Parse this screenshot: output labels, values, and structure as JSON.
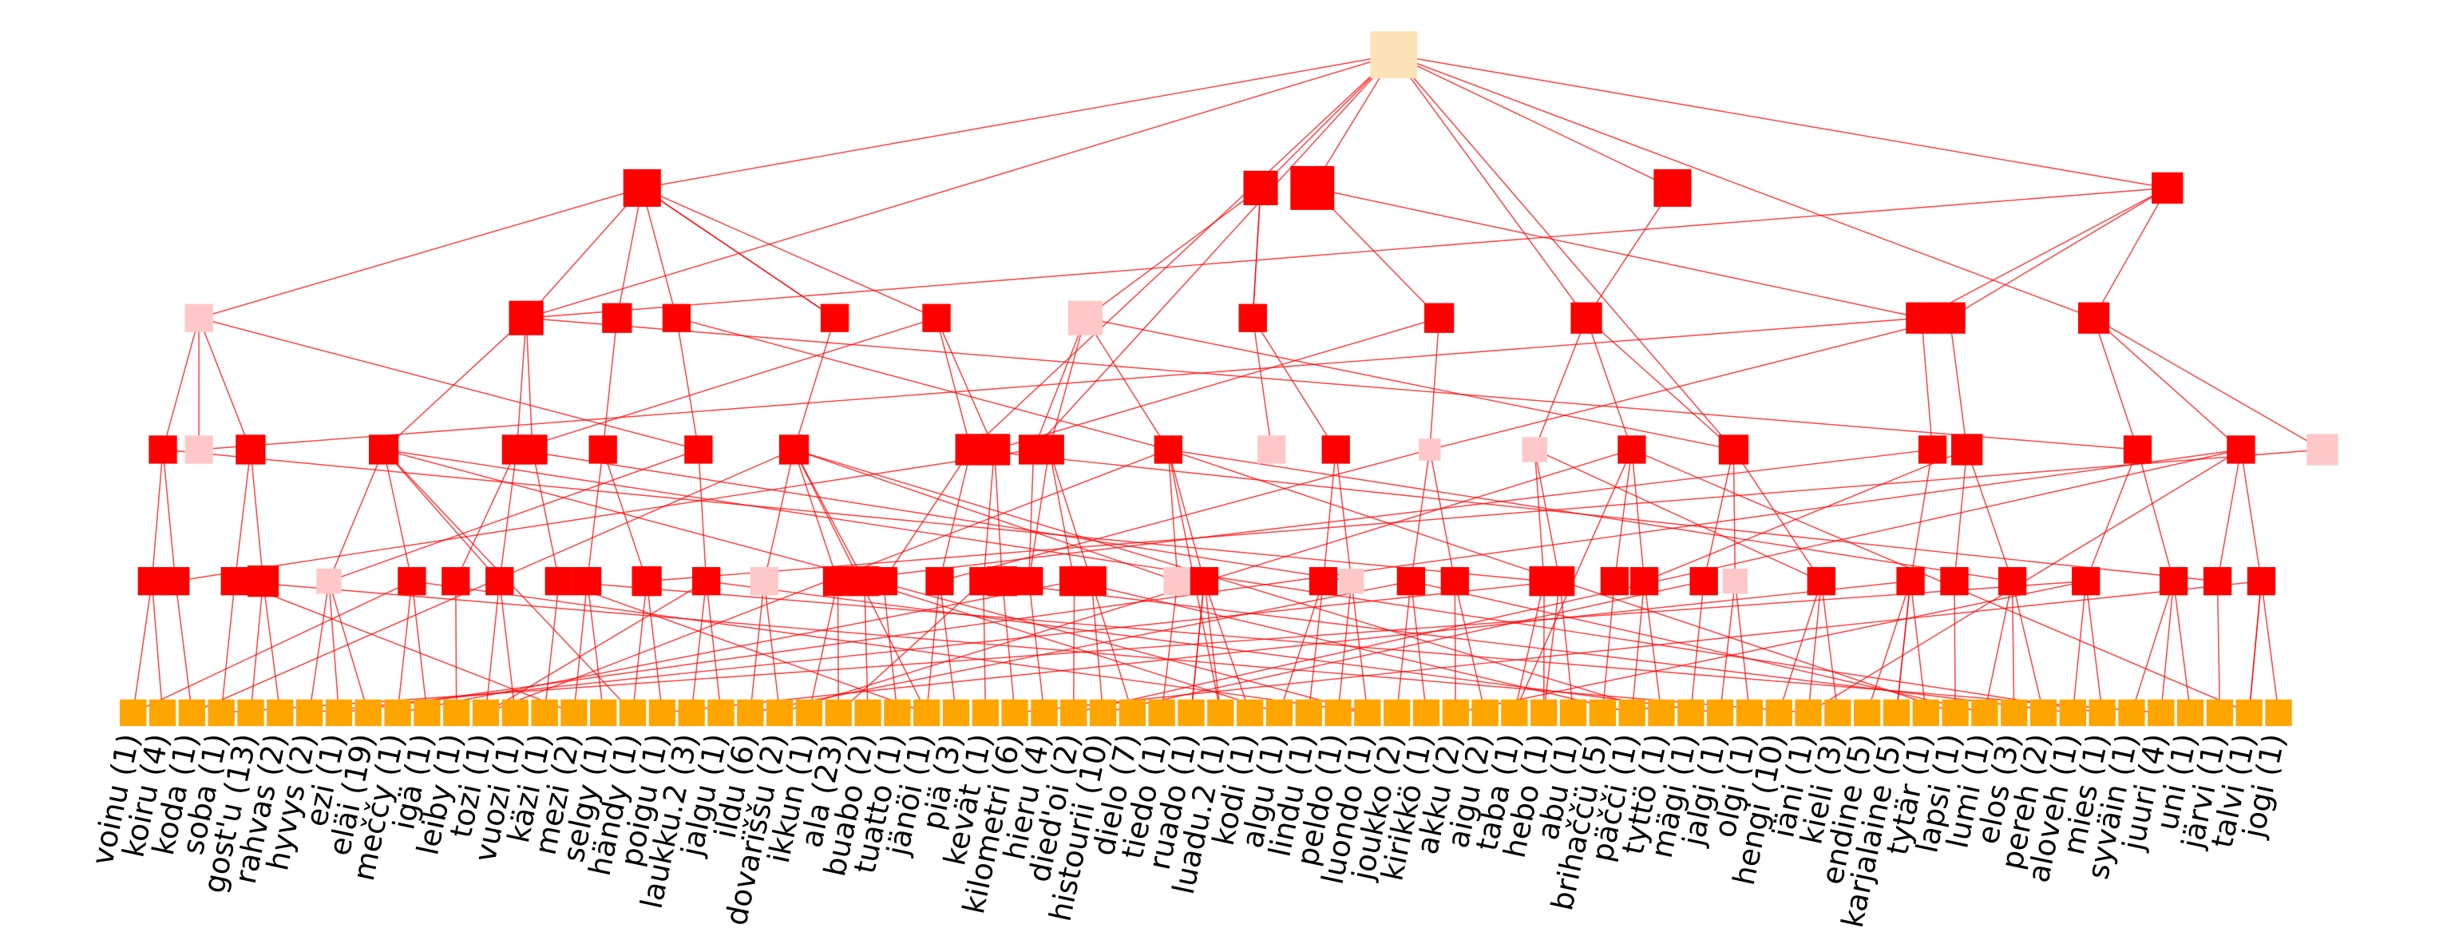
{
  "leaves": [
    "voinu (1)",
    "koiru (4)",
    "koda (1)",
    "soba (1)",
    "gost'u (13)",
    "rahvas (2)",
    "hyvys (2)",
    "ezi (1)",
    "eläi (19)",
    "meččy (1)",
    "igä (1)",
    "leiby (1)",
    "tozi (1)",
    "vuozi (1)",
    "käzi (1)",
    "mezi (2)",
    "selgy (1)",
    "händy (1)",
    "poigu (1)",
    "laukku.2 (3)",
    "jalgu (1)",
    "ildu (6)",
    "dovarïššu (2)",
    "ikkun (1)",
    "ala (23)",
    "buabo (2)",
    "tuatto (1)",
    "jänöi (1)",
    "piä (3)",
    "kevät (1)",
    "kilometri (6)",
    "hieru (4)",
    "died'oi (2)",
    "histourii (10)",
    "dielo (7)",
    "tiedo (1)",
    "ruado (1)",
    "luadu.2 (1)",
    "kodi (1)",
    "algu (1)",
    "lindu (1)",
    "peldo (1)",
    "luondo (1)",
    "joukko (2)",
    "kirikkö (1)",
    "akku (2)",
    "aigu (2)",
    "taba (1)",
    "hebo (1)",
    "abu (1)",
    "brihaččü (5)",
    "päčči (1)",
    "tyttö (1)",
    "mägi (1)",
    "jalgi (1)",
    "olgi (1)",
    "hengi (10)",
    "iäni (1)",
    "kieli (3)",
    "endine (5)",
    "karjalaine (5)",
    "tytär (1)",
    "lapsi (1)",
    "lumi (1)",
    "elos (3)",
    "pereh (2)",
    "aloveh (1)",
    "mies (1)",
    "syväin (1)",
    "juuri (4)",
    "uni (1)",
    "järvi (1)",
    "talvi (1)",
    "jogi (1)"
  ]
}
